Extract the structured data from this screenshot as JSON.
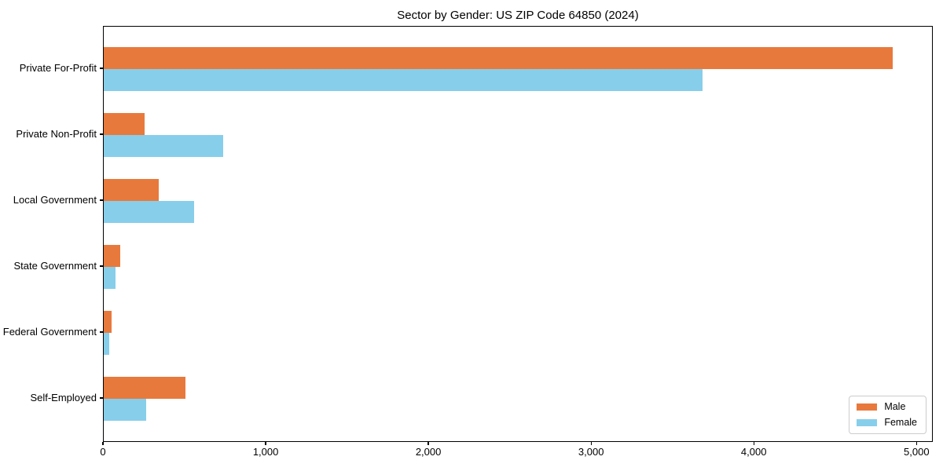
{
  "title": "Sector by Gender: US ZIP Code 64850 (2024)",
  "chart_data": {
    "type": "bar",
    "orientation": "horizontal",
    "title": "Sector by Gender: US ZIP Code 64850 (2024)",
    "xlabel": "",
    "ylabel": "",
    "categories": [
      "Private For-Profit",
      "Private Non-Profit",
      "Local Government",
      "State Government",
      "Federal Government",
      "Self-Employed"
    ],
    "series": [
      {
        "name": "Male",
        "color": "#e8793c",
        "values": [
          4850,
          250,
          340,
          100,
          50,
          500
        ]
      },
      {
        "name": "Female",
        "color": "#87ceeb",
        "values": [
          3680,
          735,
          555,
          70,
          35,
          260
        ]
      }
    ],
    "xlim": [
      0,
      5100
    ],
    "xticks": [
      0,
      1000,
      2000,
      3000,
      4000,
      5000
    ],
    "xtick_labels": [
      "0",
      "1,000",
      "2,000",
      "3,000",
      "4,000",
      "5,000"
    ],
    "grid": false,
    "legend_position": "lower right",
    "legend_border_color": "#cccccc",
    "background_color": "#ffffff",
    "spine_color": "#000000"
  }
}
